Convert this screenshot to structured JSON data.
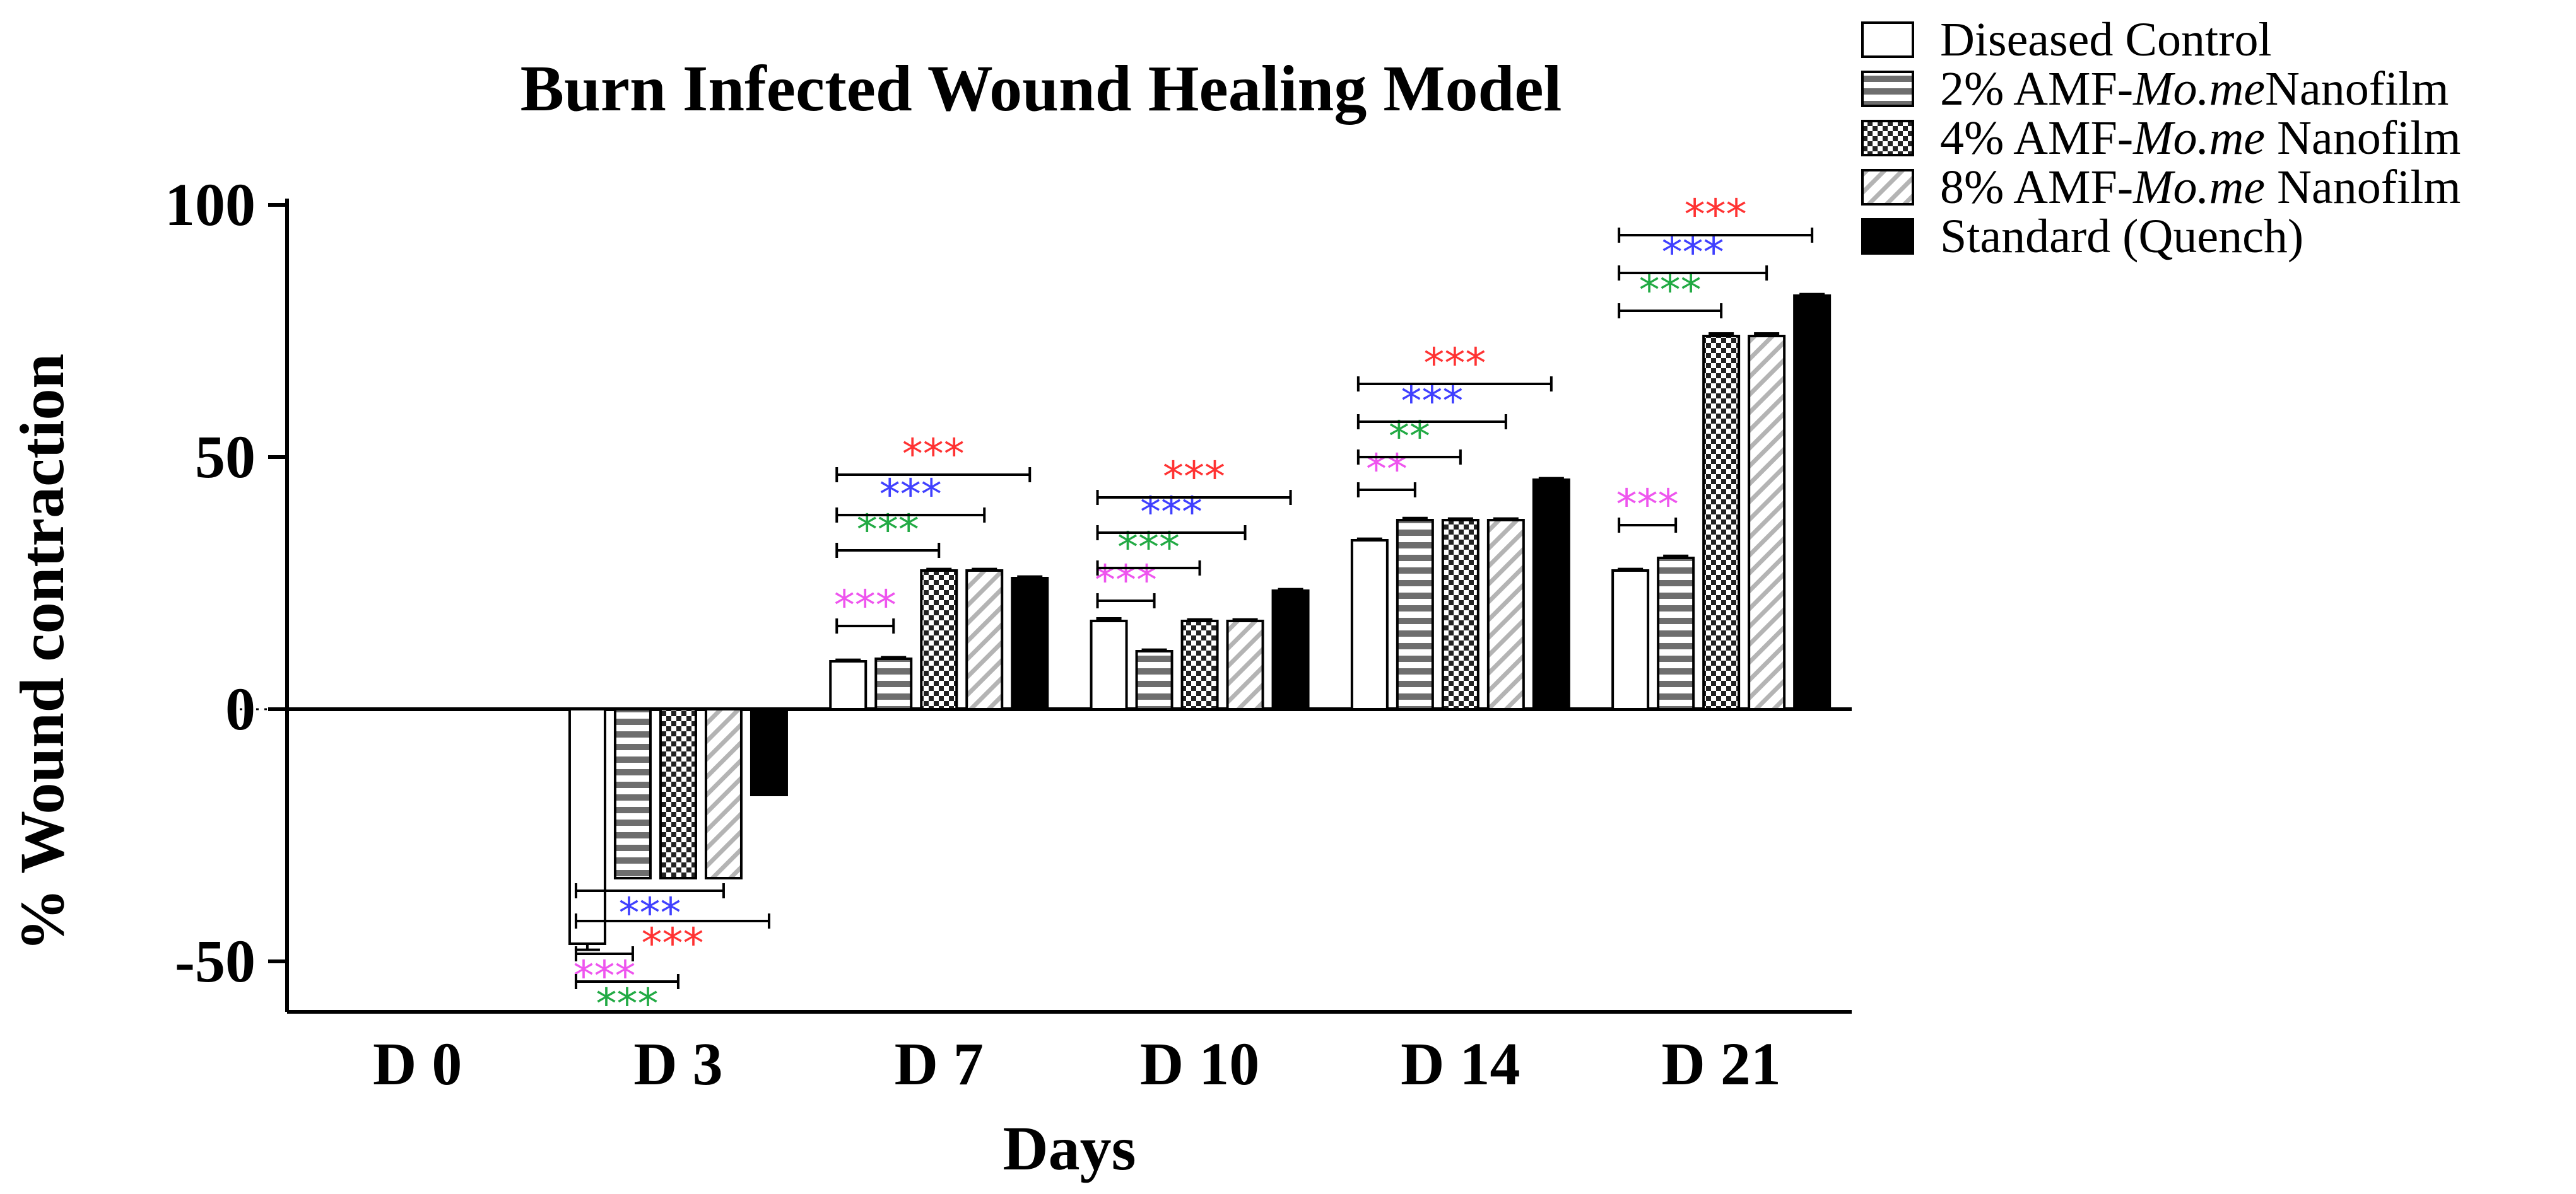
{
  "chart_data": {
    "type": "bar",
    "title": "Burn Infected Wound Healing Model",
    "xlabel": "Days",
    "ylabel": "% Wound contraction",
    "ylim": [
      -60,
      100
    ],
    "yticks": [
      {
        "value": 100,
        "label": "100"
      },
      {
        "value": 50,
        "label": "50"
      },
      {
        "value": 0,
        "label": "0"
      },
      {
        "value": -50,
        "label": "-50"
      }
    ],
    "categories": [
      "D 0",
      "D 3",
      "D 7",
      "D 10",
      "D 14",
      "D 21"
    ],
    "legend_position": "top-right",
    "series": [
      {
        "name": "Diseased Control",
        "legend_parts": [
          "Diseased Control"
        ],
        "pattern": "open",
        "values": [
          0,
          -46.5,
          9.5,
          17.5,
          33.5,
          27.5
        ],
        "errors": [
          0,
          1.2,
          0.3,
          0.5,
          0.3,
          0.3
        ]
      },
      {
        "name": "2% AMF-Mo.me Nanofilm",
        "legend_parts": [
          "2% AMF-",
          "Mo.me",
          "Nanofilm"
        ],
        "pattern": "hstripes",
        "values": [
          0,
          -33.5,
          10,
          11.5,
          37.5,
          30
        ],
        "errors": [
          0,
          0,
          0.3,
          0.3,
          0.4,
          0.4
        ]
      },
      {
        "name": "4% AMF-Mo.me Nanofilm",
        "legend_parts": [
          "4% AMF-",
          "Mo.me",
          " Nanofilm"
        ],
        "pattern": "checker",
        "values": [
          0,
          -33.5,
          27.5,
          17.5,
          37.5,
          74
        ],
        "errors": [
          0,
          0,
          0.3,
          0.3,
          0.3,
          0.5
        ]
      },
      {
        "name": "8% AMF-Mo.me Nanofilm",
        "legend_parts": [
          "8% AMF-",
          "Mo.me",
          " Nanofilm"
        ],
        "pattern": "diag",
        "values": [
          0,
          -33.5,
          27.5,
          17.5,
          37.5,
          74
        ],
        "errors": [
          0,
          0,
          0.3,
          0.3,
          0.3,
          0.5
        ]
      },
      {
        "name": "Standard (Quench)",
        "legend_parts": [
          "Standard (Quench)"
        ],
        "pattern": "solid",
        "values": [
          0,
          -17,
          26,
          23.5,
          45.5,
          82
        ],
        "errors": [
          0,
          0,
          0.3,
          0.3,
          0.3,
          0.3
        ]
      }
    ],
    "significance": [
      {
        "category": 1,
        "from": 0,
        "to": 3,
        "level": -36,
        "label": "***",
        "color": "#4040ff",
        "label_pos": "below"
      },
      {
        "category": 1,
        "from": 0,
        "to": 4,
        "level": -42,
        "label": "***",
        "color": "#ff3333",
        "label_pos": "below"
      },
      {
        "category": 1,
        "from": 0,
        "to": 1,
        "level": -48.5,
        "label": "***",
        "color": "#ee55ee",
        "label_pos": "below"
      },
      {
        "category": 1,
        "from": 0,
        "to": 2,
        "level": -54,
        "label": "***",
        "color": "#22aa44",
        "label_pos": "below"
      },
      {
        "category": 2,
        "from": 0,
        "to": 1,
        "level": 16.5,
        "label": "***",
        "color": "#ee55ee",
        "label_pos": "above"
      },
      {
        "category": 2,
        "from": 0,
        "to": 2,
        "level": 31.5,
        "label": "***",
        "color": "#22aa44",
        "label_pos": "above"
      },
      {
        "category": 2,
        "from": 0,
        "to": 3,
        "level": 38.5,
        "label": "***",
        "color": "#4040ff",
        "label_pos": "above"
      },
      {
        "category": 2,
        "from": 0,
        "to": 4,
        "level": 46.5,
        "label": "***",
        "color": "#ff3333",
        "label_pos": "above"
      },
      {
        "category": 3,
        "from": 0,
        "to": 1,
        "level": 21.5,
        "label": "***",
        "color": "#ee55ee",
        "label_pos": "above"
      },
      {
        "category": 3,
        "from": 0,
        "to": 2,
        "level": 28,
        "label": "***",
        "color": "#22aa44",
        "label_pos": "above"
      },
      {
        "category": 3,
        "from": 0,
        "to": 3,
        "level": 35,
        "label": "***",
        "color": "#4040ff",
        "label_pos": "above"
      },
      {
        "category": 3,
        "from": 0,
        "to": 4,
        "level": 42,
        "label": "***",
        "color": "#ff3333",
        "label_pos": "above"
      },
      {
        "category": 4,
        "from": 0,
        "to": 1,
        "level": 43.5,
        "label": "**",
        "color": "#ee55ee",
        "label_pos": "above"
      },
      {
        "category": 4,
        "from": 0,
        "to": 2,
        "level": 50,
        "label": "**",
        "color": "#22aa44",
        "label_pos": "above"
      },
      {
        "category": 4,
        "from": 0,
        "to": 3,
        "level": 57,
        "label": "***",
        "color": "#4040ff",
        "label_pos": "above"
      },
      {
        "category": 4,
        "from": 0,
        "to": 4,
        "level": 64.5,
        "label": "***",
        "color": "#ff3333",
        "label_pos": "above"
      },
      {
        "category": 5,
        "from": 0,
        "to": 1,
        "level": 36.5,
        "label": "***",
        "color": "#ee55ee",
        "label_pos": "above"
      },
      {
        "category": 5,
        "from": 0,
        "to": 2,
        "level": 79,
        "label": "***",
        "color": "#22aa44",
        "label_pos": "above"
      },
      {
        "category": 5,
        "from": 0,
        "to": 3,
        "level": 86.5,
        "label": "***",
        "color": "#4040ff",
        "label_pos": "above"
      },
      {
        "category": 5,
        "from": 0,
        "to": 4,
        "level": 94,
        "label": "***",
        "color": "#ff3333",
        "label_pos": "above"
      }
    ],
    "colors": {
      "bar_stroke": "#000000",
      "solid_fill": "#000000",
      "open_fill": "#ffffff"
    }
  }
}
